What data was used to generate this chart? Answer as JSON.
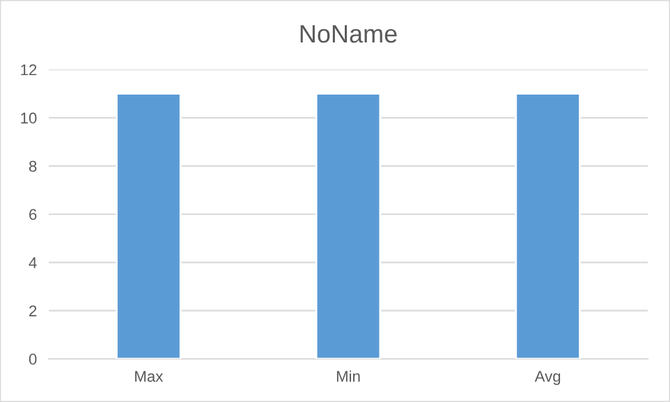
{
  "chart_data": {
    "type": "bar",
    "title": "NoName",
    "categories": [
      "Max",
      "Min",
      "Avg"
    ],
    "values": [
      11,
      11,
      11
    ],
    "color": "#5b9bd5",
    "ylim": [
      0,
      12
    ],
    "yticks": [
      0,
      2,
      4,
      6,
      8,
      10,
      12
    ],
    "grid": "y"
  }
}
